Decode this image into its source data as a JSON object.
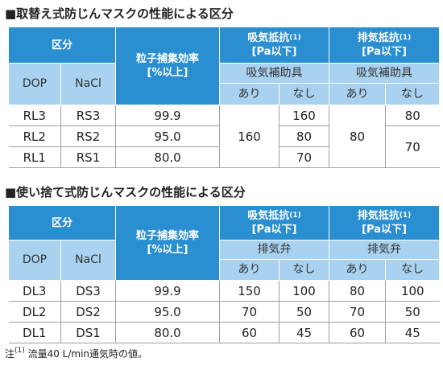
{
  "sections": [
    {
      "title": "■取替え式防じんマスクの性能による区分",
      "table": {
        "header": {
          "category": "区分",
          "dop": "DOP",
          "nacl": "NaCl",
          "efficiency": "粒子捕集効率",
          "efficiency_unit": "[%以上]",
          "inhale": {
            "label": "吸気抵抗",
            "note": "(1)",
            "unit": "[Pa以下]",
            "sub": "吸気補助具",
            "with": "あり",
            "without": "なし"
          },
          "exhale": {
            "label": "排気抵抗",
            "note": "(1)",
            "unit": "[Pa以下]",
            "sub": "吸気補助具",
            "with": "あり",
            "without": "なし"
          }
        },
        "rows": [
          [
            "RL3",
            "RS3",
            "99.9",
            "160",
            "160",
            "80",
            "80"
          ],
          [
            "RL2",
            "RS2",
            "95.0",
            "80",
            "70"
          ],
          [
            "RL1",
            "RS1",
            "80.0",
            "70"
          ]
        ]
      }
    },
    {
      "title": "■使い捨て式防じんマスクの性能による区分",
      "table": {
        "header": {
          "category": "区分",
          "dop": "DOP",
          "nacl": "NaCl",
          "efficiency": "粒子捕集効率",
          "efficiency_unit": "[%以上]",
          "inhale": {
            "label": "吸気抵抗",
            "note": "(1)",
            "unit": "[Pa以下]",
            "sub": "排気弁",
            "with": "あり",
            "without": "なし"
          },
          "exhale": {
            "label": "排気抵抗",
            "note": "(1)",
            "unit": "[Pa以下]",
            "sub": "排気弁",
            "with": "あり",
            "without": "なし"
          }
        },
        "rows": [
          [
            "DL3",
            "DS3",
            "99.9",
            "150",
            "100",
            "80",
            "100"
          ],
          [
            "DL2",
            "DS2",
            "95.0",
            "70",
            "50",
            "70",
            "50"
          ],
          [
            "DL1",
            "DS1",
            "80.0",
            "60",
            "45",
            "60",
            "45"
          ]
        ]
      }
    }
  ],
  "footnote": {
    "prefix": "注",
    "note": "(1)",
    "text": "流量40 L/min通気時の値。"
  }
}
